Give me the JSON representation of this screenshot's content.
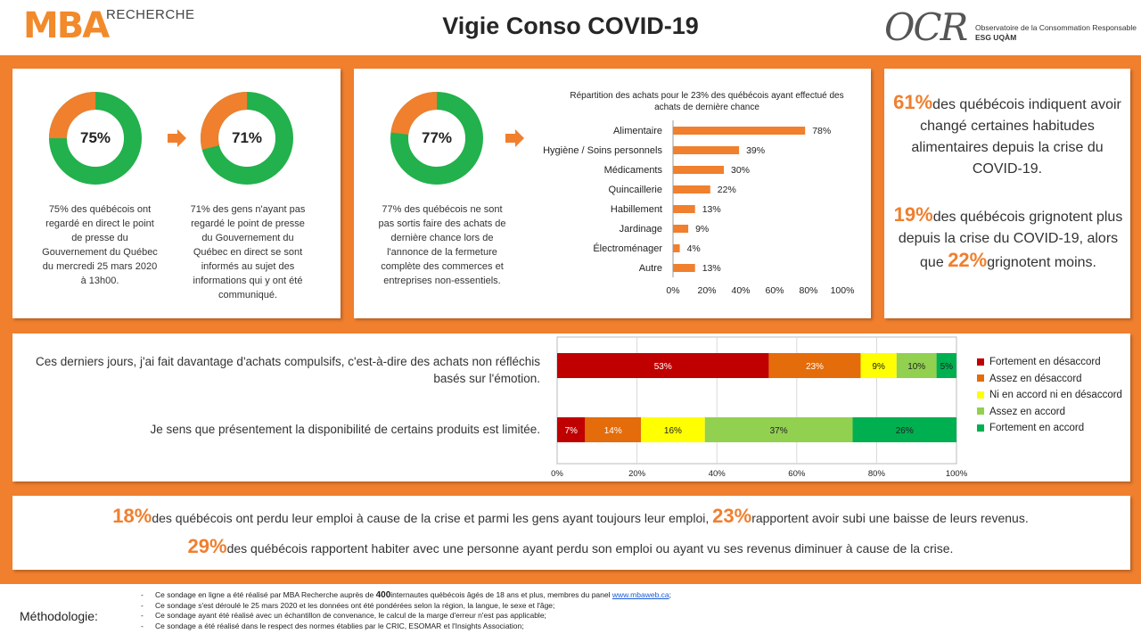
{
  "header": {
    "logo_left_main": "MBA",
    "logo_left_sub": "RECHERCHE",
    "title": "Vigie Conso COVID-19",
    "logo_right_main": "OCR",
    "logo_right_sub1": "Observatoire de la Consommation Responsable",
    "logo_right_sub2": "ESG UQÀM"
  },
  "colors": {
    "orange": "#f07f2e",
    "green": "#22b14c",
    "strong_disagree": "#c00000",
    "disagree": "#e46c0a",
    "neutral": "#ffff00",
    "agree": "#92d050",
    "strong_agree": "#00b050"
  },
  "donuts": [
    {
      "value": 75,
      "label": "75%",
      "text": "75% des québécois ont regardé en direct le point de presse du Gouvernement du Québec du mercredi 25 mars 2020 à 13h00."
    },
    {
      "value": 71,
      "label": "71%",
      "text": "71% des gens n'ayant pas regardé le point de presse du Gouvernement du Québec en direct se sont informés au sujet des informations qui y ont été communiqué."
    },
    {
      "value": 77,
      "label": "77%",
      "text": "77% des québécois ne sont pas sortis faire des achats de dernière chance lors de l'annonce de la fermeture complète des commerces et entreprises non-essentiels."
    }
  ],
  "chart_data": [
    {
      "type": "bar",
      "orientation": "horizontal",
      "title": "Répartition des achats pour le 23% des québécois ayant effectué des achats de dernière chance",
      "categories": [
        "Alimentaire",
        "Hygiène / Soins personnels",
        "Médicaments",
        "Quincaillerie",
        "Habillement",
        "Jardinage",
        "Électroménager",
        "Autre"
      ],
      "values": [
        78,
        39,
        30,
        22,
        13,
        9,
        4,
        13
      ],
      "value_labels": [
        "78%",
        "39%",
        "30%",
        "22%",
        "13%",
        "9%",
        "4%",
        "13%"
      ],
      "xlim": [
        0,
        100
      ],
      "xticks": [
        "0%",
        "20%",
        "40%",
        "60%",
        "80%",
        "100%"
      ],
      "grid": false
    },
    {
      "type": "bar",
      "orientation": "horizontal",
      "stacked": true,
      "categories": [
        "Ces derniers jours, j'ai fait davantage d'achats compulsifs, c'est-à-dire des achats non réfléchis basés sur l'émotion.",
        "Je sens que présentement la disponibilité de certains produits est limitée."
      ],
      "series": [
        {
          "name": "Fortement en désaccord",
          "values": [
            53,
            7
          ],
          "labels": [
            "53%",
            "7%"
          ]
        },
        {
          "name": "Assez en désaccord",
          "values": [
            23,
            14
          ],
          "labels": [
            "23%",
            "14%"
          ]
        },
        {
          "name": "Ni en accord ni en désaccord",
          "values": [
            9,
            16
          ],
          "labels": [
            "9%",
            "16%"
          ]
        },
        {
          "name": "Assez en accord",
          "values": [
            10,
            37
          ],
          "labels": [
            "10%",
            "37%"
          ]
        },
        {
          "name": "Fortement en accord",
          "values": [
            5,
            26
          ],
          "labels": [
            "5%",
            "26%"
          ]
        }
      ],
      "xlim": [
        0,
        100
      ],
      "xticks": [
        "0%",
        "20%",
        "40%",
        "60%",
        "80%",
        "100%"
      ],
      "legend": "right",
      "grid": true
    }
  ],
  "stats_right": {
    "s1_pct": "61%",
    "s1_text": "des québécois indiquent avoir changé certaines habitudes alimentaires depuis la crise du COVID-19.",
    "s2_pct": "19%",
    "s2_text": "des québécois grignotent plus depuis la crise du COVID-19, alors que",
    "s3_pct": "22%",
    "s3_text": "grignotent moins."
  },
  "bottom": {
    "p1_pct": "18%",
    "p1_text": "des québécois ont perdu leur emploi à cause de la crise et parmi les gens ayant toujours leur emploi,",
    "p2_pct": "23%",
    "p2_text": "rapportent avoir subi une baisse de leurs revenus.",
    "p3_pct": "29%",
    "p3_text": "des québécois rapportent habiter avec une personne ayant perdu son emploi ou ayant vu ses revenus diminuer à cause de la crise."
  },
  "methodology": {
    "label": "Méthodologie:",
    "line1_a": "Ce sondage en ligne a été réalisé par MBA Recherche auprès de ",
    "line1_b": "400",
    "line1_c": "internautes québécois âgés de 18 ans et plus, membres du panel ",
    "line1_link": "www.mbaweb.ca",
    "line1_d": ";",
    "line2": "Ce sondage s'est déroulé le 25 mars 2020 et les données ont été pondérées selon la région, la langue, le sexe et l'âge;",
    "line3": "Ce sondage ayant été réalisé avec un échantillon de convenance, le calcul de la marge d'erreur n'est pas applicable;",
    "line4": "Ce sondage a été réalisé dans le respect des normes établies par le CRIC, ESOMAR et l'Insights Association;"
  }
}
